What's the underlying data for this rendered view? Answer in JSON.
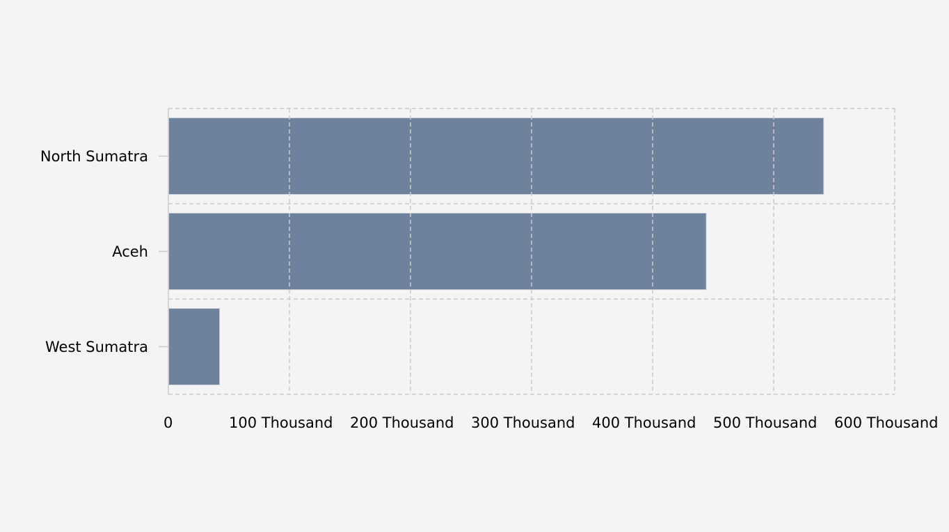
{
  "chart_data": {
    "type": "bar",
    "orientation": "horizontal",
    "title": "",
    "xlabel": "",
    "ylabel": "",
    "categories": [
      "North Sumatra",
      "Aceh",
      "West Sumatra"
    ],
    "values": [
      541000,
      444000,
      42000
    ],
    "xlim": [
      0,
      600000
    ],
    "x_ticks": [
      0,
      100000,
      200000,
      300000,
      400000,
      500000,
      600000
    ],
    "x_tick_labels": [
      "0",
      "100 Thousand",
      "200 Thousand",
      "300 Thousand",
      "400 Thousand",
      "500 Thousand",
      "600 Thousand"
    ],
    "grid": true,
    "grid_style": "dashed",
    "legend": null,
    "colors": {
      "bar": "#6e829d",
      "bar_border": "#c9d0dc",
      "grid": "#cccccc",
      "background": "#f4f4f4",
      "text": "#000000"
    }
  }
}
